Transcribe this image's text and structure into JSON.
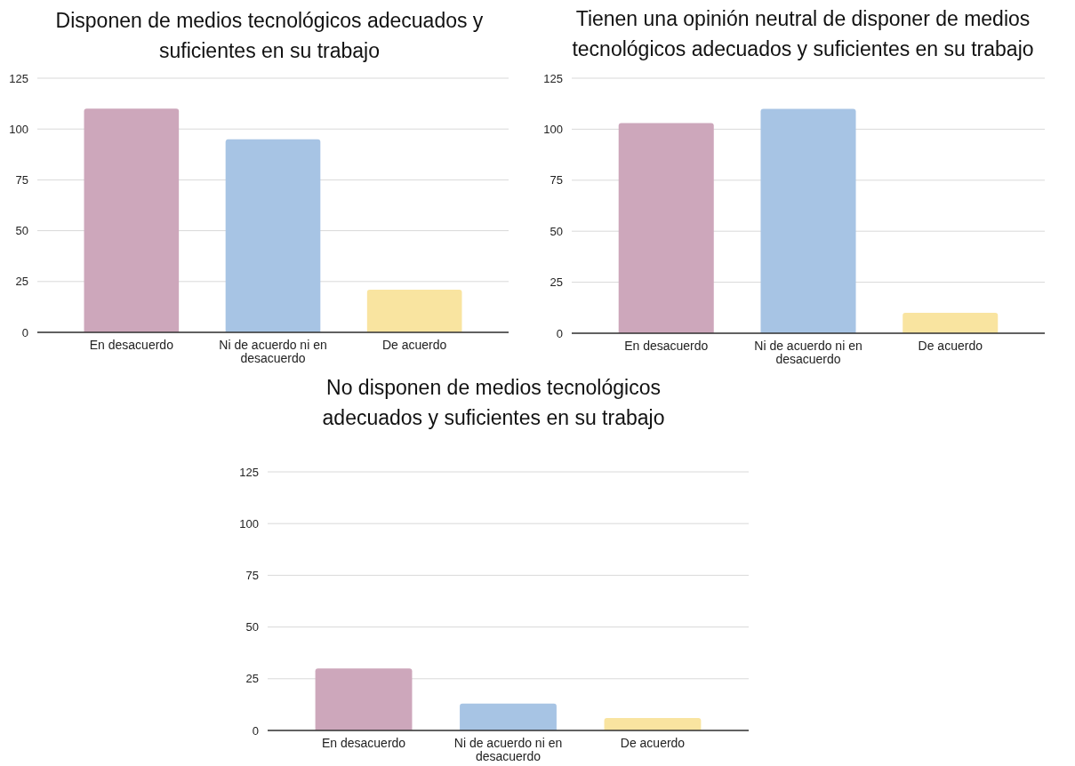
{
  "chart_data": [
    {
      "type": "bar",
      "title": "Disponen de medios tecnológicos adecuados y suficientes en su trabajo",
      "categories": [
        "En desacuerdo",
        "Ni de acuerdo ni en desacuerdo",
        "De acuerdo"
      ],
      "values": [
        110,
        95,
        21
      ],
      "colors": [
        "#cda7bb",
        "#a7c4e4",
        "#f9e4a0"
      ],
      "ylim": [
        0,
        125
      ],
      "yticks": [
        0,
        25,
        50,
        75,
        100,
        125
      ],
      "grid": "y"
    },
    {
      "type": "bar",
      "title": "Tienen una opinión neutral de disponer de medios tecnológicos adecuados y suficientes en su trabajo",
      "categories": [
        "En desacuerdo",
        "Ni de acuerdo ni en desacuerdo",
        "De acuerdo"
      ],
      "values": [
        103,
        110,
        10
      ],
      "colors": [
        "#cda7bb",
        "#a7c4e4",
        "#f9e4a0"
      ],
      "ylim": [
        0,
        125
      ],
      "yticks": [
        0,
        25,
        50,
        75,
        100,
        125
      ],
      "grid": "y"
    },
    {
      "type": "bar",
      "title": "No disponen de medios tecnológicos adecuados y suficientes en su trabajo",
      "categories": [
        "En desacuerdo",
        "Ni de acuerdo ni en desacuerdo",
        "De acuerdo"
      ],
      "values": [
        30,
        13,
        6
      ],
      "colors": [
        "#cda7bb",
        "#a7c4e4",
        "#f9e4a0"
      ],
      "ylim": [
        0,
        125
      ],
      "yticks": [
        0,
        25,
        50,
        75,
        100,
        125
      ],
      "grid": "y"
    }
  ]
}
